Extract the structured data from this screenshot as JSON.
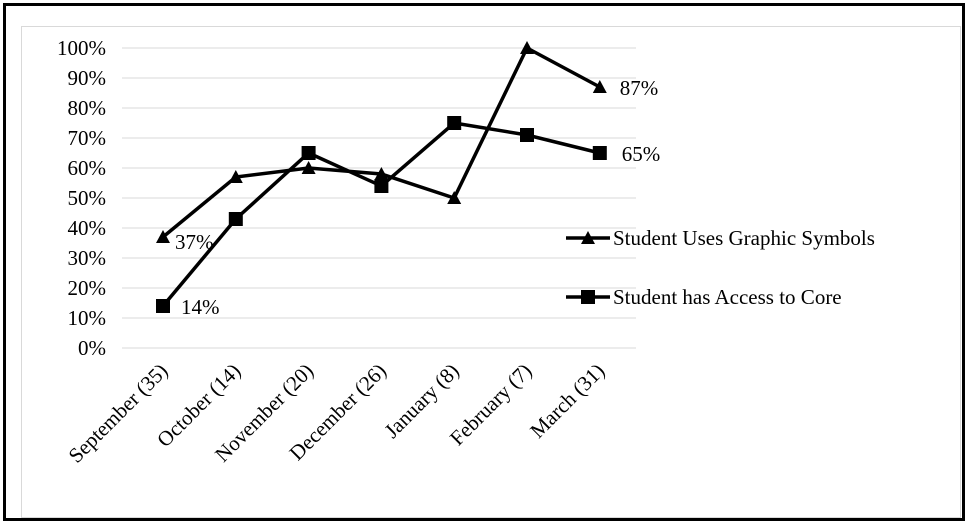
{
  "chart_data": {
    "type": "line",
    "categories": [
      "September (35)",
      "October (14)",
      "November (20)",
      "December (26)",
      "January (8)",
      "February (7)",
      "March (31)"
    ],
    "y_ticks": [
      "0%",
      "10%",
      "20%",
      "30%",
      "40%",
      "50%",
      "60%",
      "70%",
      "80%",
      "90%",
      "100%"
    ],
    "ylim": [
      0,
      100
    ],
    "grid": true,
    "legend_position": "right",
    "series": [
      {
        "name": "Student Uses Graphic Symbols",
        "marker": "triangle",
        "values": [
          37,
          57,
          60,
          58,
          50,
          100,
          87
        ],
        "labels": [
          {
            "index": 0,
            "text": "37%"
          },
          {
            "index": 6,
            "text": "87%"
          }
        ]
      },
      {
        "name": "Student has Access to Core",
        "marker": "square",
        "values": [
          14,
          43,
          65,
          54,
          75,
          71,
          65
        ],
        "labels": [
          {
            "index": 0,
            "text": "14%"
          },
          {
            "index": 6,
            "text": "65%"
          }
        ]
      }
    ],
    "colors": {
      "line": "#000000",
      "grid": "#d9d9d9"
    }
  }
}
